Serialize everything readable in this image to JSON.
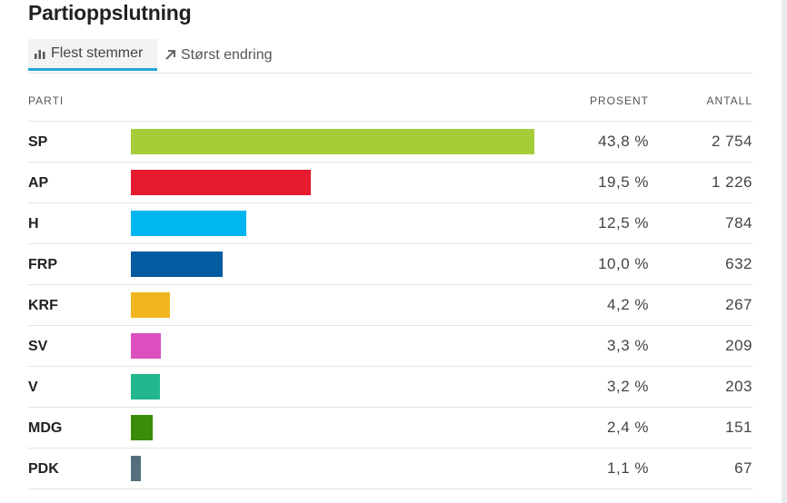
{
  "title": "Partioppslutning",
  "tabs": [
    {
      "label": "Flest stemmer",
      "icon": "bar-chart-icon",
      "active": true
    },
    {
      "label": "Størst endring",
      "icon": "arrow-up-right-icon",
      "active": false
    }
  ],
  "headers": {
    "parti": "PARTI",
    "prosent": "PROSENT",
    "antall": "ANTALL"
  },
  "chart_data": {
    "type": "bar",
    "orientation": "horizontal",
    "categories": [
      "SP",
      "AP",
      "H",
      "FRP",
      "KRF",
      "SV",
      "V",
      "MDG",
      "PDK"
    ],
    "values": [
      43.8,
      19.5,
      12.5,
      10.0,
      4.2,
      3.3,
      3.2,
      2.4,
      1.1
    ],
    "percent_labels": [
      "43,8 %",
      "19,5 %",
      "12,5 %",
      "10,0 %",
      "4,2 %",
      "3,3 %",
      "3,2 %",
      "2,4 %",
      "1,1 %"
    ],
    "counts": [
      "2 754",
      "1 226",
      "784",
      "632",
      "267",
      "209",
      "203",
      "151",
      "67"
    ],
    "colors": [
      "#a5cd38",
      "#e61b30",
      "#00b6ef",
      "#035ba0",
      "#f0b51f",
      "#dc4fbf",
      "#22b68d",
      "#3a8c0a",
      "#566f7d"
    ]
  }
}
